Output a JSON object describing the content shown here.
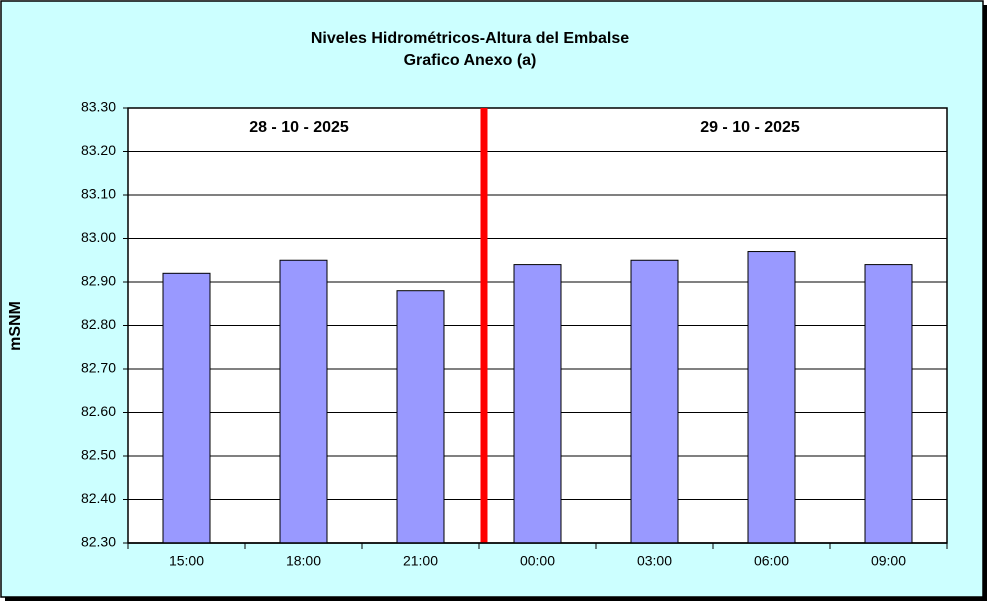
{
  "chart_data": {
    "type": "bar",
    "title": "Niveles Hidrométricos-Altura del Embalse",
    "subtitle": "Grafico Anexo (a)",
    "y_label": "mSNM",
    "annotations": [
      "28 - 10 - 2025",
      "29 - 10 - 2025"
    ],
    "categories": [
      "15:00",
      "18:00",
      "21:00",
      "00:00",
      "03:00",
      "06:00",
      "09:00"
    ],
    "values": [
      82.92,
      82.95,
      82.88,
      82.94,
      82.95,
      82.97,
      82.94
    ],
    "color": "#9999ff",
    "ylim": [
      82.3,
      83.3
    ],
    "yticks": [
      {
        "value": 82.3,
        "label": "82.30"
      },
      {
        "value": 82.4,
        "label": "82.40"
      },
      {
        "value": 82.5,
        "label": "82.50"
      },
      {
        "value": 82.6,
        "label": "82.60"
      },
      {
        "value": 82.7,
        "label": "82.70"
      },
      {
        "value": 82.8,
        "label": "82.80"
      },
      {
        "value": 82.9,
        "label": "82.90"
      },
      {
        "value": 83.0,
        "label": "83.00"
      },
      {
        "value": 83.1,
        "label": "83.10"
      },
      {
        "value": 83.2,
        "label": "83.20"
      },
      {
        "value": 83.3,
        "label": "83.30"
      }
    ],
    "grid": true
  }
}
